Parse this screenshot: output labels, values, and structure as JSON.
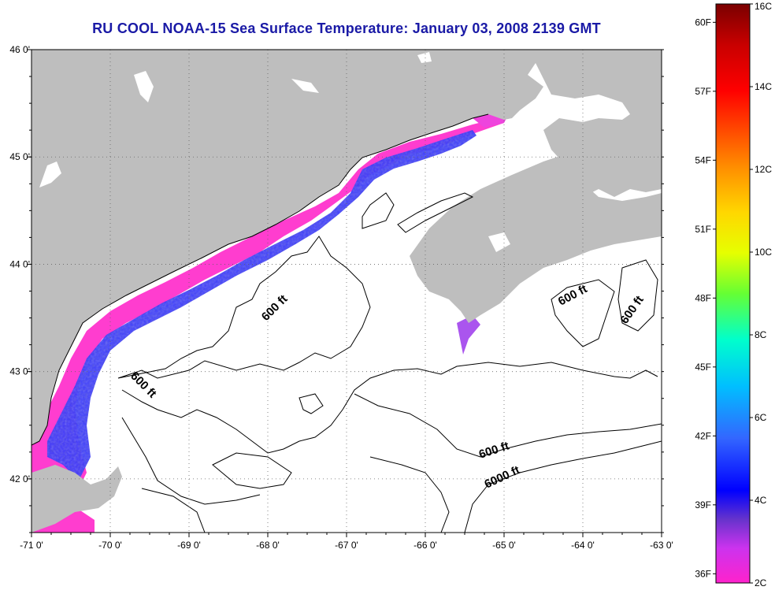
{
  "title": "RU COOL  NOAA-15  Sea Surface Temperature:  January 03, 2008 2139 GMT",
  "map": {
    "lon_range": [
      -71,
      -63
    ],
    "lat_range": [
      41.5,
      46
    ],
    "lon_ticks": [
      {
        "lon": -71,
        "label": "-71 0'"
      },
      {
        "lon": -70,
        "label": "-70 0'"
      },
      {
        "lon": -69,
        "label": "-69 0'"
      },
      {
        "lon": -68,
        "label": "-68 0'"
      },
      {
        "lon": -67,
        "label": "-67 0'"
      },
      {
        "lon": -66,
        "label": "-66 0'"
      },
      {
        "lon": -65,
        "label": "-65 0'"
      },
      {
        "lon": -64,
        "label": "-64 0'"
      },
      {
        "lon": -63,
        "label": "-63 0'"
      }
    ],
    "lat_ticks": [
      {
        "lat": 46,
        "label": "46 0'"
      },
      {
        "lat": 45,
        "label": "45 0'"
      },
      {
        "lat": 44,
        "label": "44 0'"
      },
      {
        "lat": 43,
        "label": "43 0'"
      },
      {
        "lat": 42,
        "label": "42 0'"
      }
    ],
    "contour_labels": {
      "c600a": "600 ft",
      "c600b": "600 ft",
      "c600c": "600 ft",
      "c600d": "600 ft",
      "c600e": "600 ft",
      "c6000": "6000 ft"
    },
    "colors": {
      "land": "#bebebe",
      "ocean": "#ffffff",
      "sst_cold": "#ff33cc",
      "sst_mid": "#3333ff"
    }
  },
  "colorbar": {
    "celsius": [
      {
        "value": 16,
        "label": "16C"
      },
      {
        "value": 14,
        "label": "14C"
      },
      {
        "value": 12,
        "label": "12C"
      },
      {
        "value": 10,
        "label": "10C"
      },
      {
        "value": 8,
        "label": "8C"
      },
      {
        "value": 6,
        "label": "6C"
      },
      {
        "value": 4,
        "label": "4C"
      },
      {
        "value": 2,
        "label": "2C"
      }
    ],
    "fahrenheit": [
      {
        "value": 60,
        "label": "60F"
      },
      {
        "value": 57,
        "label": "57F"
      },
      {
        "value": 54,
        "label": "54F"
      },
      {
        "value": 51,
        "label": "51F"
      },
      {
        "value": 48,
        "label": "48F"
      },
      {
        "value": 45,
        "label": "45F"
      },
      {
        "value": 42,
        "label": "42F"
      },
      {
        "value": 39,
        "label": "39F"
      },
      {
        "value": 36,
        "label": "36F"
      }
    ]
  }
}
